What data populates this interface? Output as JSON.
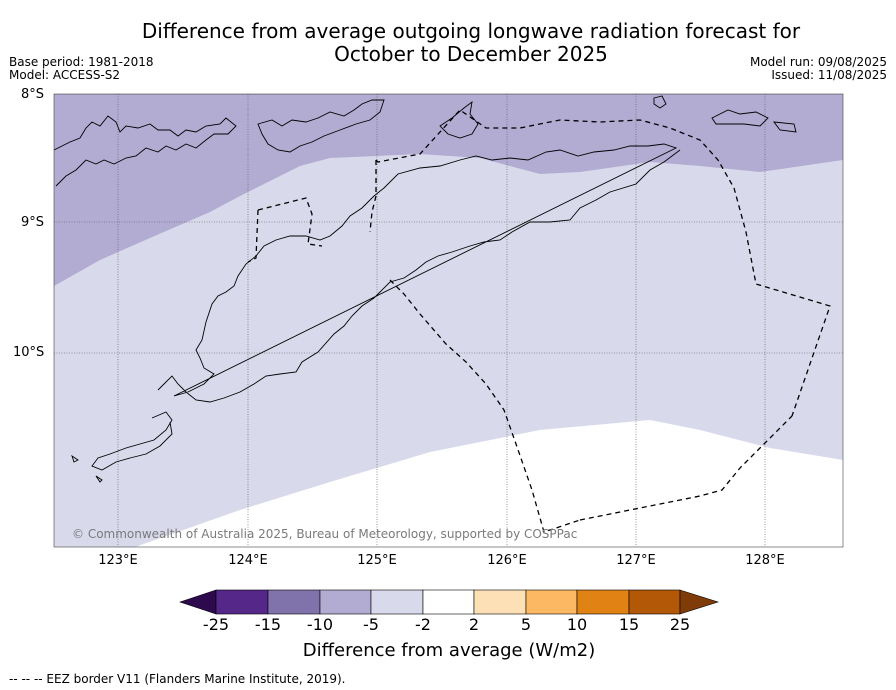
{
  "title_line1": "Difference from average outgoing longwave radiation forecast for",
  "title_line2": "October to December 2025",
  "base_period": "Base period: 1981-2018",
  "model": "Model: ACCESS-S2",
  "model_run": "Model run: 09/08/2025",
  "issued": "Issued: 11/08/2025",
  "lat_labels": [
    "8°S",
    "9°S",
    "10°S"
  ],
  "lon_labels": [
    "123°E",
    "124°E",
    "125°E",
    "126°E",
    "127°E",
    "128°E"
  ],
  "copyright": "© Commonwealth of Australia 2025, Bureau of Meteorology, supported by COSPPac",
  "colorbar": {
    "ticks": [
      "-25",
      "-15",
      "-10",
      "-5",
      "-2",
      "2",
      "5",
      "10",
      "15",
      "25"
    ],
    "colors": [
      "#2d0a4e",
      "#542788",
      "#8073ac",
      "#b2abd2",
      "#d8daeb",
      "#ffffff",
      "#fee0b6",
      "#fdb863",
      "#e08214",
      "#b35806",
      "#7f3b08"
    ],
    "label": "Difference from average (W/m2)"
  },
  "footer": "-- -- -- EEZ border V11 (Flanders Marine Institute, 2019).",
  "map_colors": {
    "lt_-5": "#b2abd2",
    "neg5_to_neg2": "#d8daeb",
    "neg2_to_2": "#ffffff"
  }
}
